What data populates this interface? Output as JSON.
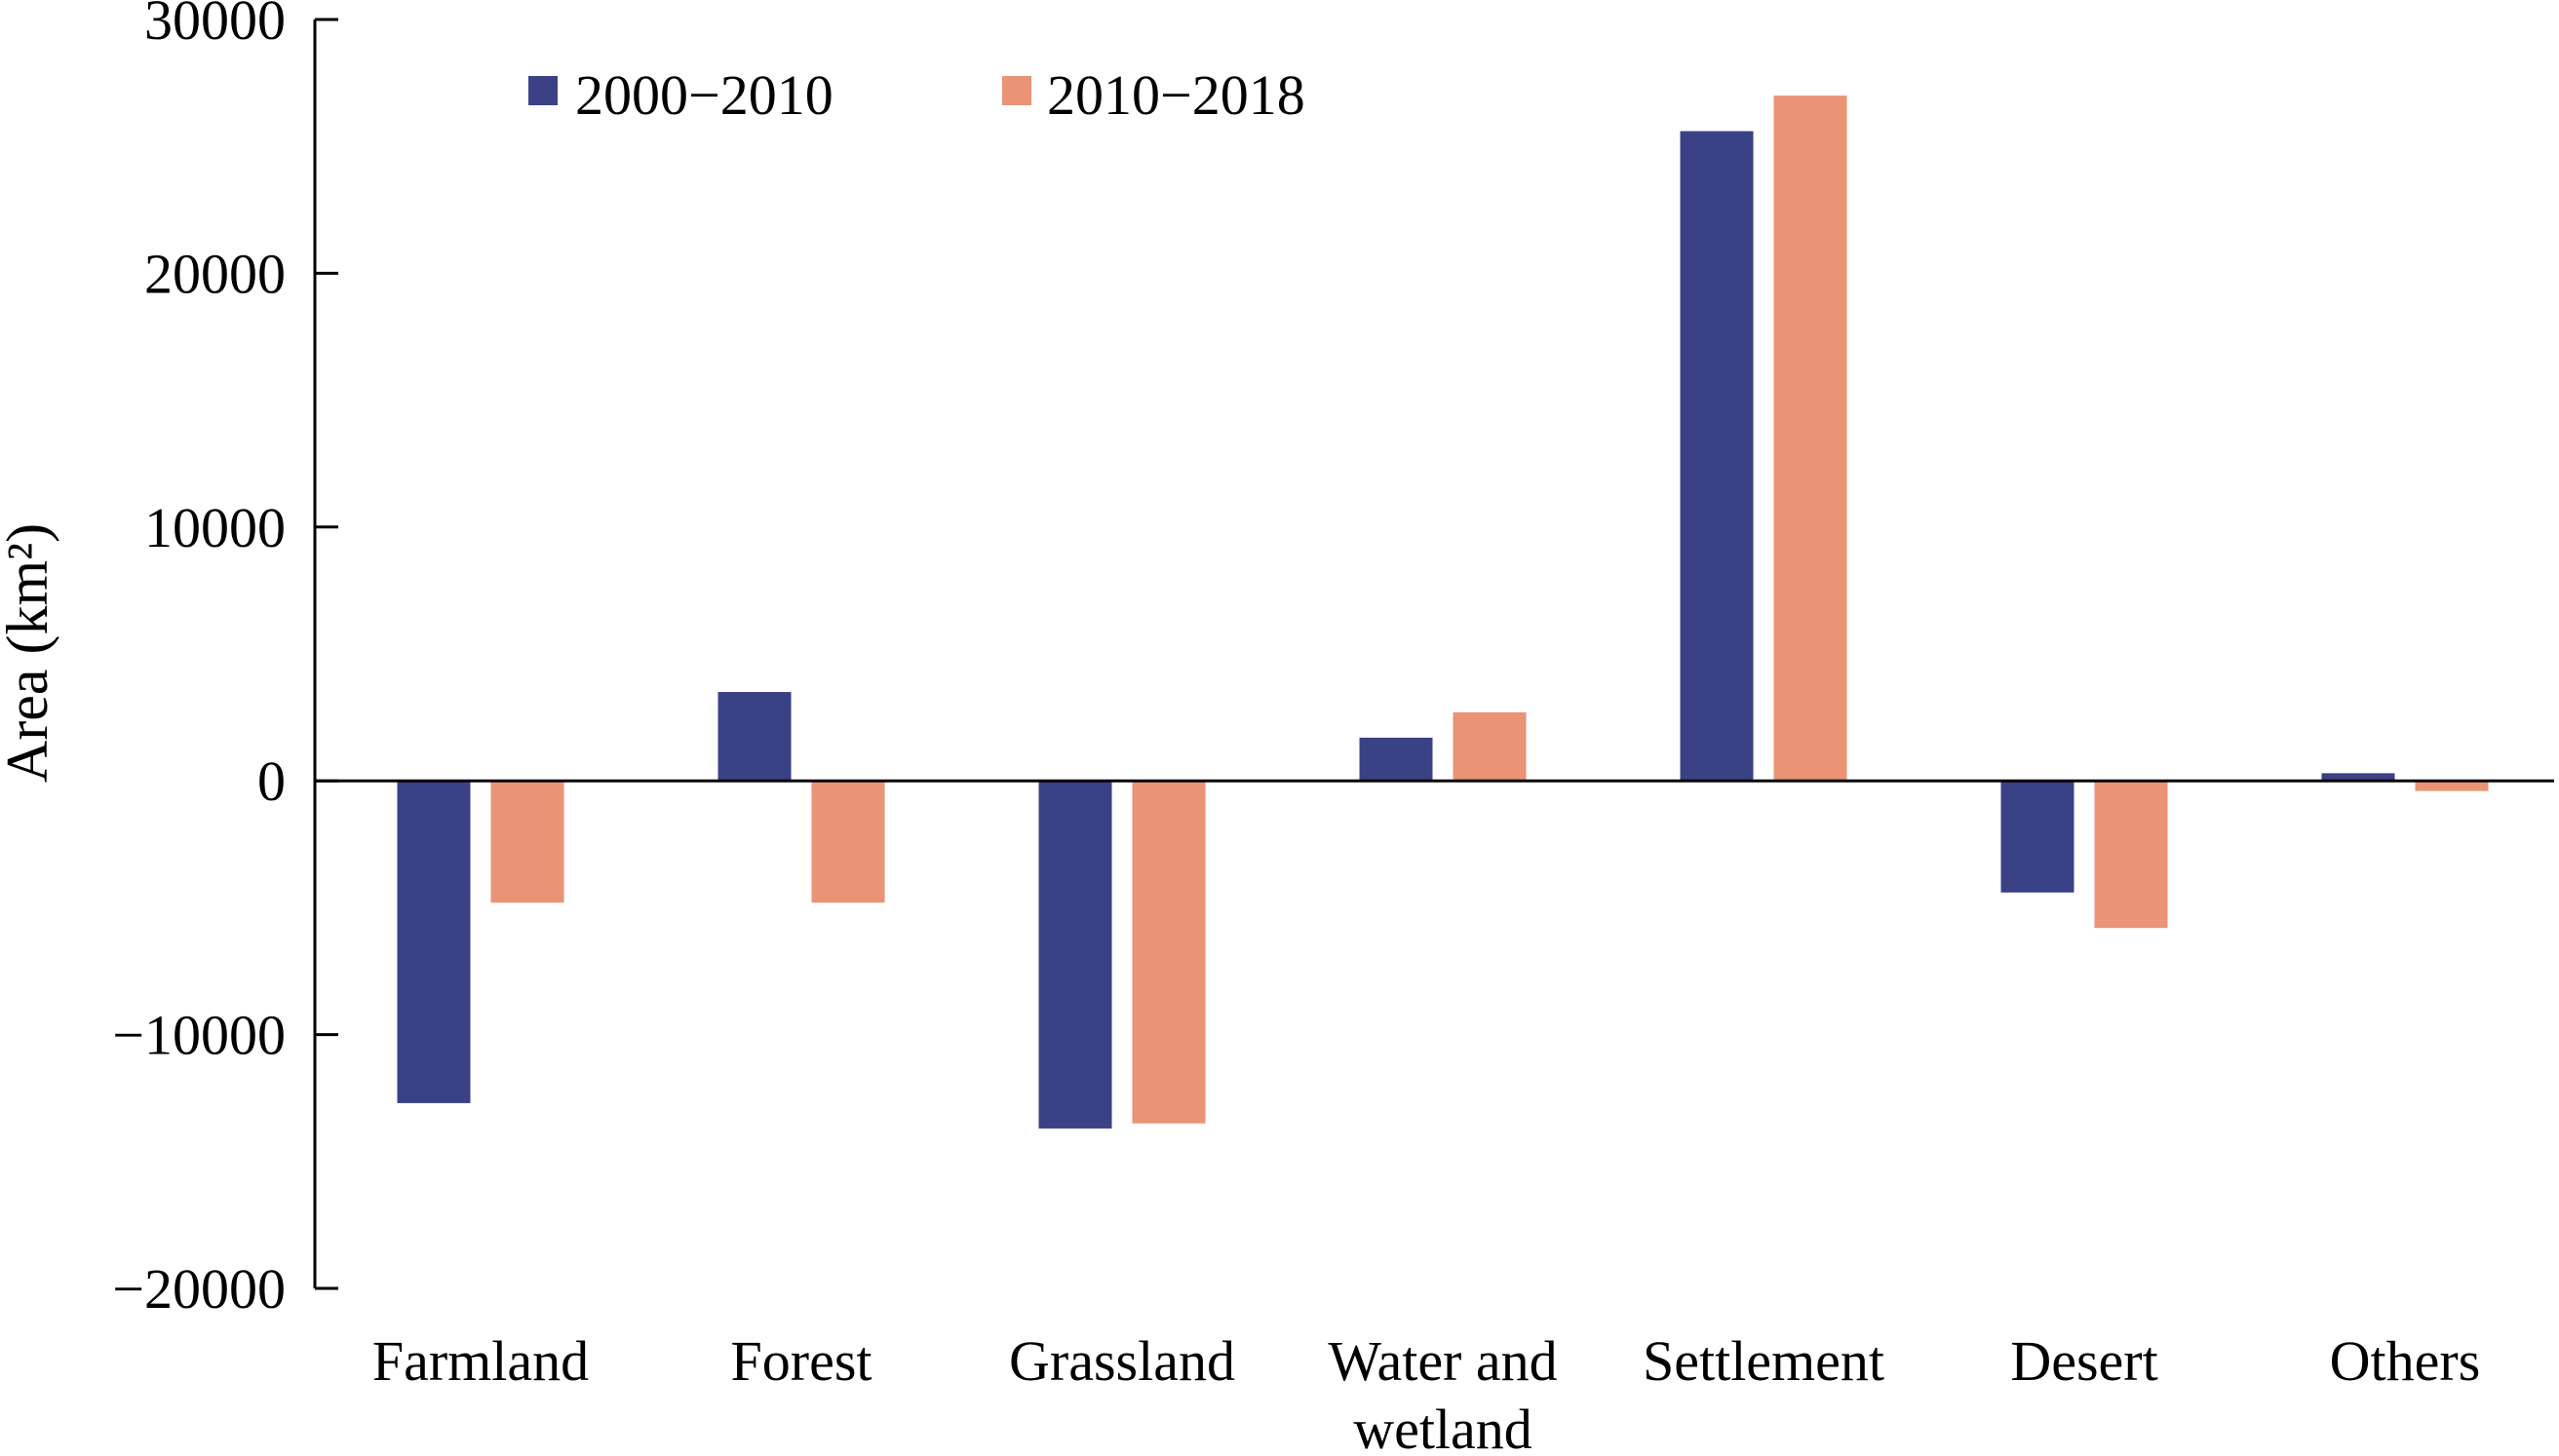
{
  "chart_data": {
    "type": "bar",
    "title": "",
    "xlabel": "",
    "ylabel": "Area (km²)",
    "ylim": [
      -20000,
      30000
    ],
    "yticks": [
      -20000,
      -10000,
      0,
      10000,
      20000,
      30000
    ],
    "ytick_labels": [
      "−20000",
      "−10000",
      "0",
      "10000",
      "20000",
      "30000"
    ],
    "grid": false,
    "legend_position": "top-left",
    "categories": [
      [
        "Farmland"
      ],
      [
        "Forest"
      ],
      [
        "Grassland"
      ],
      [
        "Water and",
        "wetland"
      ],
      [
        "Settlement"
      ],
      [
        "Desert"
      ],
      [
        "Others"
      ]
    ],
    "series": [
      {
        "name": "2000−2010",
        "color": "#3a4185",
        "values": [
          -12700,
          3500,
          -13700,
          1700,
          25600,
          -4400,
          300
        ]
      },
      {
        "name": "2010−2018",
        "color": "#ea9375",
        "values": [
          -4800,
          -4800,
          -13500,
          2700,
          27000,
          -5800,
          -400
        ]
      }
    ]
  }
}
